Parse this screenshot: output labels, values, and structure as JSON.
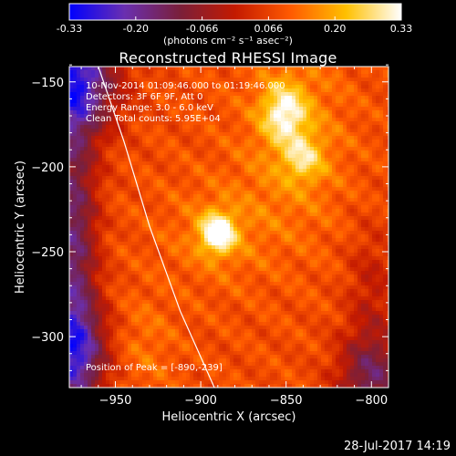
{
  "chart_data": {
    "type": "heatmap",
    "title": "Reconstructed RHESSI Image",
    "xlabel": "Heliocentric X (arcsec)",
    "ylabel": "Heliocentric Y (arcsec)",
    "x_ticks": [
      -950,
      -900,
      -850,
      -800
    ],
    "y_ticks": [
      -150,
      -200,
      -250,
      -300
    ],
    "xlim": [
      -977,
      -790
    ],
    "ylim": [
      -330,
      -141
    ],
    "colorbar": {
      "label": "(photons cm⁻² s⁻¹ asec⁻²)",
      "range": [
        -0.33,
        0.33
      ],
      "tick_labels": [
        "-0.33",
        "-0.20",
        "-0.066",
        "0.066",
        "0.20",
        "0.33"
      ],
      "colormap": [
        "#0000ff",
        "#6a2fb0",
        "#7a1f3a",
        "#c41a00",
        "#ff5a00",
        "#ffc000",
        "#ffffff"
      ]
    },
    "annotations": [
      "10-Nov-2014 01:09:46.000 to 01:19:46.000",
      "Detectors: 3F 6F 9F, Att 0",
      "Energy Range: 3.0 - 6.0 keV",
      "Clean     Total counts: 5.95E+04"
    ],
    "peak_label": "Position of Peak = [-890,-239]",
    "peak": [
      -890,
      -239
    ],
    "sources": [
      {
        "x": -890,
        "y": -239,
        "intensity": 0.33
      },
      {
        "x": -851,
        "y": -168,
        "intensity": 0.25
      },
      {
        "x": -840,
        "y": -195,
        "intensity": 0.2
      }
    ],
    "limb_curve": [
      [
        -960,
        -141
      ],
      [
        -945,
        -185
      ],
      [
        -930,
        -235
      ],
      [
        -912,
        -285
      ],
      [
        -892,
        -330
      ]
    ]
  },
  "footer_date": "28-Jul-2017 14:19",
  "colors": {
    "background": "#000000",
    "text": "#ffffff"
  }
}
